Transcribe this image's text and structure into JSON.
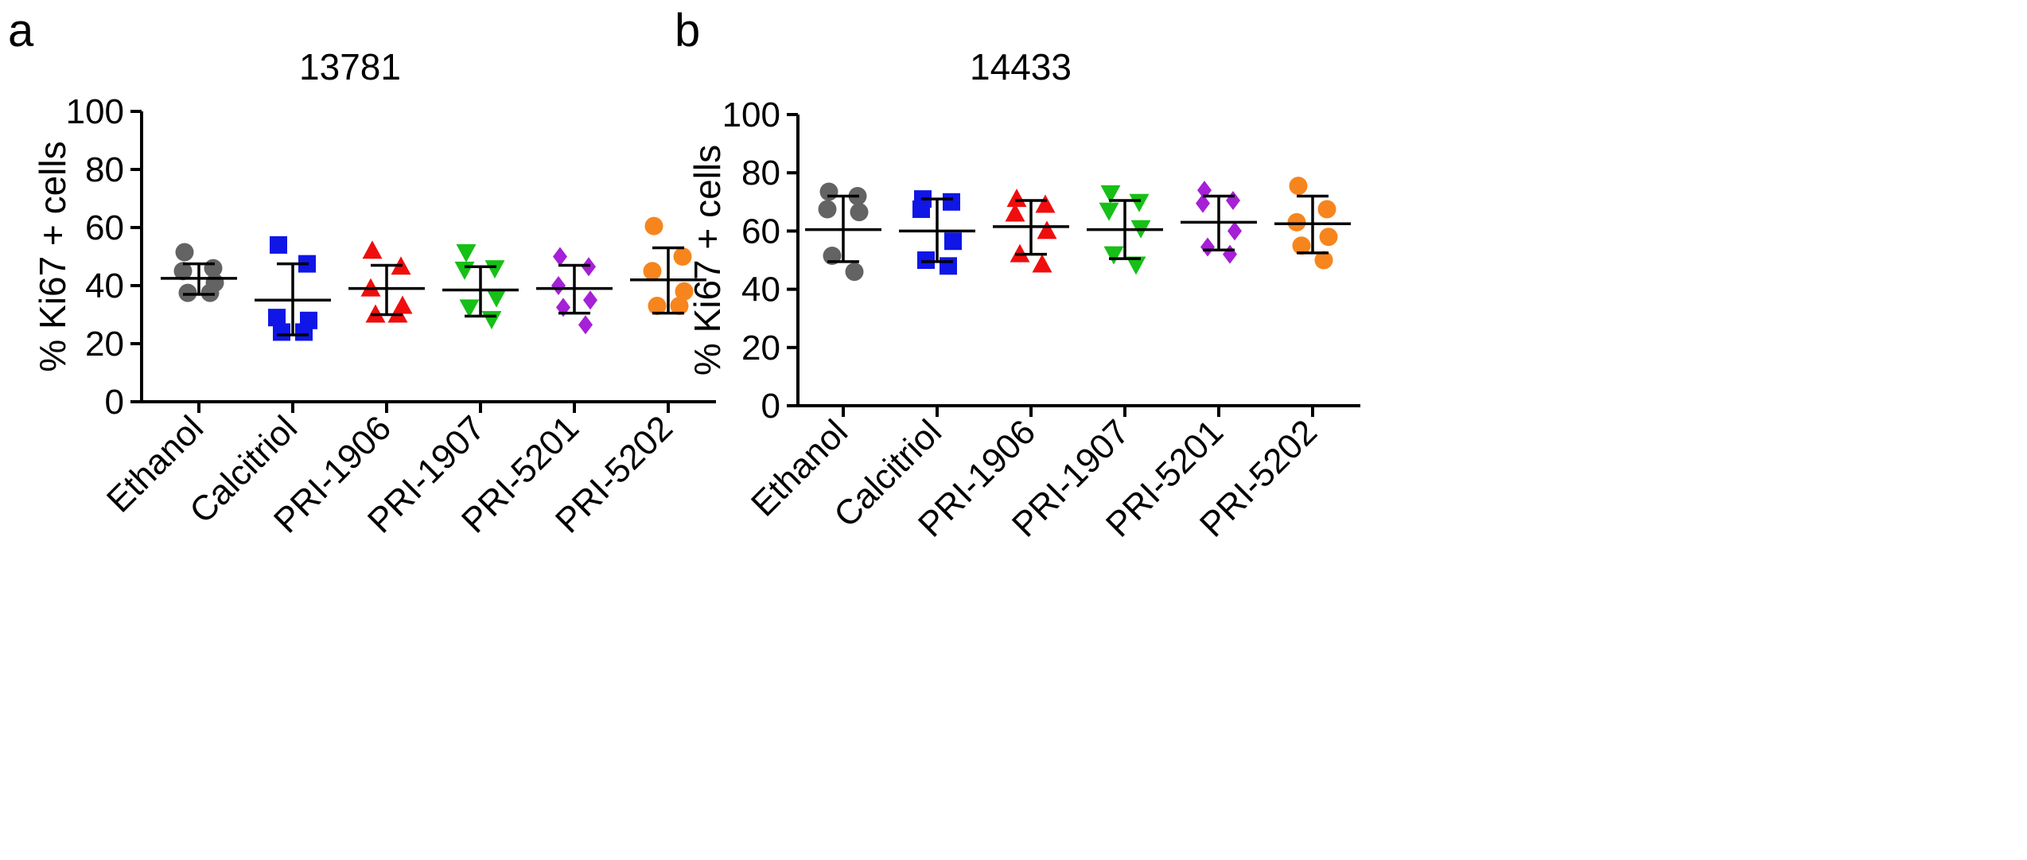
{
  "chart_data": [
    {
      "type": "scatter",
      "panel_label": "a",
      "title": "13781",
      "xlabel": "",
      "ylabel": "% Ki67 + cells",
      "ylim": [
        0,
        100
      ],
      "yticks": [
        "0",
        "20",
        "40",
        "60",
        "80",
        "100"
      ],
      "categories": [
        "Ethanol",
        "Calcitriol",
        "PRI-1906",
        "PRI-1907",
        "PRI-5201",
        "PRI-5202"
      ],
      "markers": [
        "circle",
        "square",
        "triangle-up",
        "triangle-down",
        "diamond",
        "circle"
      ],
      "colors": [
        "#636363",
        "#0f16e6",
        "#f00d0d",
        "#16c016",
        "#a520d6",
        "#f7851e"
      ],
      "points": [
        [
          51.5,
          46,
          45,
          41,
          37.5,
          37.5
        ],
        [
          54,
          47.5,
          29,
          28,
          24,
          24
        ],
        [
          52,
          46.5,
          39,
          33,
          30,
          30
        ],
        [
          51.5,
          46,
          45.5,
          36,
          32.5,
          28.5
        ],
        [
          50,
          46.5,
          40,
          35,
          32.5,
          26.5
        ],
        [
          60.5,
          50,
          45,
          38,
          33,
          33
        ]
      ],
      "means": [
        42.5,
        35,
        39,
        38.5,
        39,
        42
      ],
      "sd_upper": [
        47.5,
        47.5,
        47,
        46.5,
        47,
        53
      ],
      "sd_lower": [
        37,
        23,
        30,
        29.5,
        30.5,
        30.5
      ]
    },
    {
      "type": "scatter",
      "panel_label": "b",
      "title": "14433",
      "xlabel": "",
      "ylabel": "% Ki67 + cells",
      "ylim": [
        0,
        100
      ],
      "yticks": [
        "0",
        "20",
        "40",
        "60",
        "80",
        "100"
      ],
      "categories": [
        "Ethanol",
        "Calcitriol",
        "PRI-1906",
        "PRI-1907",
        "PRI-5201",
        "PRI-5202"
      ],
      "markers": [
        "circle",
        "square",
        "triangle-up",
        "triangle-down",
        "diamond",
        "circle"
      ],
      "colors": [
        "#636363",
        "#0f16e6",
        "#f00d0d",
        "#16c016",
        "#a520d6",
        "#f7851e"
      ],
      "points": [
        [
          73.5,
          72,
          67.5,
          66.5,
          51.5,
          46
        ],
        [
          71,
          70,
          67.5,
          56.5,
          50,
          48
        ],
        [
          71,
          69,
          66,
          60,
          52,
          48.5
        ],
        [
          73,
          70,
          67,
          61,
          52,
          48.5
        ],
        [
          74,
          70.5,
          69.5,
          60,
          54.5,
          52
        ],
        [
          75.5,
          67.5,
          63,
          58,
          55,
          50
        ]
      ],
      "means": [
        60.5,
        60,
        61.5,
        60.5,
        63,
        62.5
      ],
      "sd_upper": [
        72,
        71,
        70.5,
        70.5,
        72,
        72
      ],
      "sd_lower": [
        49.5,
        49.5,
        52,
        50.5,
        53.5,
        52.5
      ]
    }
  ]
}
